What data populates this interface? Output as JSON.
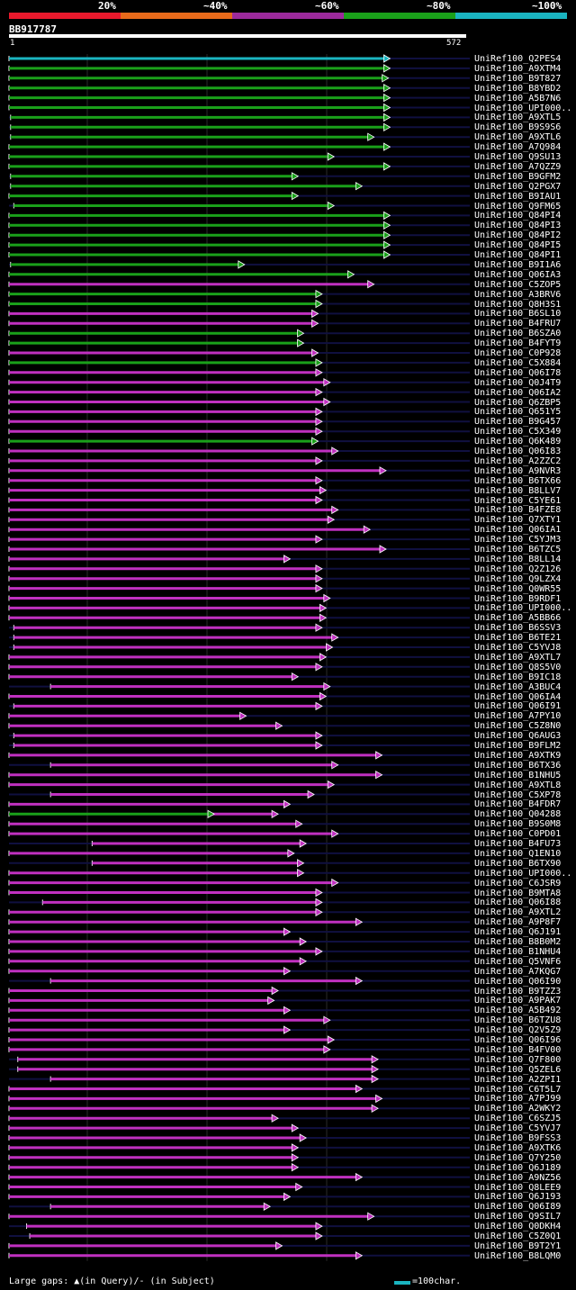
{
  "legend": [
    {
      "label": "20%",
      "color": "#e8192c"
    },
    {
      "label": "~40%",
      "color": "#e86a1a"
    },
    {
      "label": "~60%",
      "color": "#9c2a9c"
    },
    {
      "label": "~80%",
      "color": "#1aa01a"
    },
    {
      "label": "~100%",
      "color": "#1ab4c0"
    }
  ],
  "query": {
    "id": "BB917787",
    "start": "1",
    "end": "572",
    "length": 572
  },
  "colors": {
    "cyan": "#1ab4c0",
    "green": "#1aa01a",
    "magenta": "#c030c0",
    "dark": "#101040"
  },
  "footer": {
    "gap_text": "Large gaps: ▲(in Query)/- (in Subject)",
    "scale_text": "=100char."
  },
  "hits": [
    {
      "id": "UniRef100_Q2PES4",
      "start": 1,
      "end": 470,
      "color": "cyan"
    },
    {
      "id": "UniRef100_A9XTM4",
      "start": 1,
      "end": 470,
      "color": "green"
    },
    {
      "id": "UniRef100_B9T827",
      "start": 1,
      "end": 468,
      "color": "green"
    },
    {
      "id": "UniRef100_B8YBD2",
      "start": 1,
      "end": 470,
      "color": "green"
    },
    {
      "id": "UniRef100_A5B7N6",
      "start": 1,
      "end": 470,
      "color": "green"
    },
    {
      "id": "UniRef100_UPI000..",
      "start": 1,
      "end": 470,
      "color": "green"
    },
    {
      "id": "UniRef100_A9XTL5",
      "start": 3,
      "end": 470,
      "color": "green"
    },
    {
      "id": "UniRef100_B9S9S6",
      "start": 3,
      "end": 470,
      "color": "green"
    },
    {
      "id": "UniRef100_A9XTL6",
      "start": 3,
      "end": 450,
      "color": "green"
    },
    {
      "id": "UniRef100_A7Q984",
      "start": 1,
      "end": 470,
      "color": "green"
    },
    {
      "id": "UniRef100_Q9SU13",
      "start": 1,
      "end": 400,
      "color": "green"
    },
    {
      "id": "UniRef100_A7QZZ9",
      "start": 1,
      "end": 470,
      "color": "green"
    },
    {
      "id": "UniRef100_B9GFM2",
      "start": 3,
      "end": 355,
      "color": "green"
    },
    {
      "id": "UniRef100_Q2PGX7",
      "start": 3,
      "end": 435,
      "color": "green"
    },
    {
      "id": "UniRef100_B9IAU1",
      "start": 1,
      "end": 355,
      "color": "green"
    },
    {
      "id": "UniRef100_Q9FM65",
      "start": 7,
      "end": 400,
      "color": "green"
    },
    {
      "id": "UniRef100_Q84PI4",
      "start": 1,
      "end": 470,
      "color": "green"
    },
    {
      "id": "UniRef100_Q84PI3",
      "start": 1,
      "end": 470,
      "color": "green"
    },
    {
      "id": "UniRef100_Q84PI2",
      "start": 1,
      "end": 470,
      "color": "green"
    },
    {
      "id": "UniRef100_Q84PI5",
      "start": 1,
      "end": 470,
      "color": "green"
    },
    {
      "id": "UniRef100_Q84PI1",
      "start": 1,
      "end": 470,
      "color": "green"
    },
    {
      "id": "UniRef100_B9I1A6",
      "start": 3,
      "end": 288,
      "color": "green"
    },
    {
      "id": "UniRef100_Q06IA3",
      "start": 1,
      "end": 425,
      "color": "green"
    },
    {
      "id": "UniRef100_C5ZOP5",
      "start": 1,
      "end": 450,
      "color": "magenta"
    },
    {
      "id": "UniRef100_A3BRV6",
      "start": 1,
      "end": 385,
      "color": "green"
    },
    {
      "id": "UniRef100_Q8H3S1",
      "start": 1,
      "end": 385,
      "color": "green"
    },
    {
      "id": "UniRef100_B6SL10",
      "start": 1,
      "end": 380,
      "color": "magenta"
    },
    {
      "id": "UniRef100_B4FRU7",
      "start": 1,
      "end": 380,
      "color": "magenta"
    },
    {
      "id": "UniRef100_B6SZA0",
      "start": 1,
      "end": 362,
      "color": "green"
    },
    {
      "id": "UniRef100_B4FYT9",
      "start": 1,
      "end": 362,
      "color": "green"
    },
    {
      "id": "UniRef100_C0P928",
      "start": 1,
      "end": 380,
      "color": "magenta"
    },
    {
      "id": "UniRef100_C5X884",
      "start": 1,
      "end": 385,
      "color": "green"
    },
    {
      "id": "UniRef100_Q06I78",
      "start": 1,
      "end": 385,
      "color": "magenta"
    },
    {
      "id": "UniRef100_Q0J4T9",
      "start": 1,
      "end": 395,
      "color": "magenta"
    },
    {
      "id": "UniRef100_Q06IA2",
      "start": 1,
      "end": 385,
      "color": "magenta"
    },
    {
      "id": "UniRef100_Q6ZBP5",
      "start": 1,
      "end": 395,
      "color": "magenta"
    },
    {
      "id": "UniRef100_Q651Y5",
      "start": 1,
      "end": 385,
      "color": "magenta"
    },
    {
      "id": "UniRef100_B9G457",
      "start": 1,
      "end": 385,
      "color": "magenta"
    },
    {
      "id": "UniRef100_C5X349",
      "start": 1,
      "end": 385,
      "color": "magenta"
    },
    {
      "id": "UniRef100_Q6K489",
      "start": 1,
      "end": 380,
      "color": "green"
    },
    {
      "id": "UniRef100_Q06I83",
      "start": 1,
      "end": 405,
      "color": "magenta"
    },
    {
      "id": "UniRef100_A2ZZC2",
      "start": 1,
      "end": 385,
      "color": "magenta"
    },
    {
      "id": "UniRef100_A9NVR3",
      "start": 1,
      "end": 465,
      "color": "magenta"
    },
    {
      "id": "UniRef100_B6TX66",
      "start": 1,
      "end": 385,
      "color": "magenta"
    },
    {
      "id": "UniRef100_B8LLV7",
      "start": 1,
      "end": 390,
      "color": "magenta"
    },
    {
      "id": "UniRef100_C5YE61",
      "start": 1,
      "end": 385,
      "color": "magenta"
    },
    {
      "id": "UniRef100_B4FZE8",
      "start": 1,
      "end": 405,
      "color": "magenta"
    },
    {
      "id": "UniRef100_Q7XTY1",
      "start": 1,
      "end": 400,
      "color": "magenta"
    },
    {
      "id": "UniRef100_Q06IA1",
      "start": 1,
      "end": 445,
      "color": "magenta"
    },
    {
      "id": "UniRef100_C5YJM3",
      "start": 1,
      "end": 385,
      "color": "magenta"
    },
    {
      "id": "UniRef100_B6TZC5",
      "start": 1,
      "end": 465,
      "color": "magenta"
    },
    {
      "id": "UniRef100_B8LL14",
      "start": 1,
      "end": 345,
      "color": "magenta"
    },
    {
      "id": "UniRef100_Q2Z126",
      "start": 1,
      "end": 385,
      "color": "magenta"
    },
    {
      "id": "UniRef100_Q9LZX4",
      "start": 1,
      "end": 385,
      "color": "magenta"
    },
    {
      "id": "UniRef100_Q0WR55",
      "start": 1,
      "end": 385,
      "color": "magenta"
    },
    {
      "id": "UniRef100_B9RDF1",
      "start": 1,
      "end": 395,
      "color": "magenta"
    },
    {
      "id": "UniRef100_UPI000..",
      "start": 1,
      "end": 390,
      "color": "magenta"
    },
    {
      "id": "UniRef100_A5BB66",
      "start": 1,
      "end": 390,
      "color": "magenta"
    },
    {
      "id": "UniRef100_B6SSV3",
      "start": 7,
      "end": 385,
      "color": "magenta"
    },
    {
      "id": "UniRef100_B6TE21",
      "start": 7,
      "end": 405,
      "color": "magenta"
    },
    {
      "id": "UniRef100_C5YVJ8",
      "start": 7,
      "end": 398,
      "color": "magenta"
    },
    {
      "id": "UniRef100_A9XTL7",
      "start": 1,
      "end": 390,
      "color": "magenta"
    },
    {
      "id": "UniRef100_Q8S5V0",
      "start": 1,
      "end": 385,
      "color": "magenta"
    },
    {
      "id": "UniRef100_B9IC18",
      "start": 1,
      "end": 355,
      "color": "magenta"
    },
    {
      "id": "UniRef100_A3BUC4",
      "start": 53,
      "end": 395,
      "color": "magenta"
    },
    {
      "id": "UniRef100_Q06IA4",
      "start": 1,
      "end": 390,
      "color": "magenta"
    },
    {
      "id": "UniRef100_Q06I91",
      "start": 7,
      "end": 385,
      "color": "magenta"
    },
    {
      "id": "UniRef100_A7PY10",
      "start": 1,
      "end": 290,
      "color": "magenta"
    },
    {
      "id": "UniRef100_C5Z8N0",
      "start": 1,
      "end": 335,
      "color": "magenta"
    },
    {
      "id": "UniRef100_Q6AUG3",
      "start": 7,
      "end": 385,
      "color": "magenta"
    },
    {
      "id": "UniRef100_B9FLM2",
      "start": 7,
      "end": 385,
      "color": "magenta"
    },
    {
      "id": "UniRef100_A9XTK9",
      "start": 1,
      "end": 460,
      "color": "magenta"
    },
    {
      "id": "UniRef100_B6TX36",
      "start": 53,
      "end": 405,
      "color": "magenta"
    },
    {
      "id": "UniRef100_B1NHU5",
      "start": 1,
      "end": 460,
      "color": "magenta"
    },
    {
      "id": "UniRef100_A9XTL8",
      "start": 1,
      "end": 400,
      "color": "magenta"
    },
    {
      "id": "UniRef100_C5XP78",
      "start": 53,
      "end": 375,
      "color": "magenta"
    },
    {
      "id": "UniRef100_B4FDR7",
      "start": 1,
      "end": 345,
      "color": "magenta"
    },
    {
      "id": "UniRef100_Q04288",
      "start": 1,
      "end": 250,
      "color": "green",
      "end2": 330,
      "color2": "magenta"
    },
    {
      "id": "UniRef100_B9S0M8",
      "start": 1,
      "end": 360,
      "color": "magenta"
    },
    {
      "id": "UniRef100_C0PD01",
      "start": 1,
      "end": 405,
      "color": "magenta"
    },
    {
      "id": "UniRef100_B4FU73",
      "start": 105,
      "end": 365,
      "color": "magenta"
    },
    {
      "id": "UniRef100_Q1EN10",
      "start": 1,
      "end": 350,
      "color": "magenta"
    },
    {
      "id": "UniRef100_B6TX90",
      "start": 105,
      "end": 362,
      "color": "magenta"
    },
    {
      "id": "UniRef100_UPI000..",
      "start": 1,
      "end": 362,
      "color": "magenta"
    },
    {
      "id": "UniRef100_C6JSR9",
      "start": 1,
      "end": 405,
      "color": "magenta"
    },
    {
      "id": "UniRef100_B9MTA8",
      "start": 1,
      "end": 385,
      "color": "magenta"
    },
    {
      "id": "UniRef100_Q06I88",
      "start": 43,
      "end": 385,
      "color": "magenta"
    },
    {
      "id": "UniRef100_A9XTL2",
      "start": 1,
      "end": 385,
      "color": "magenta"
    },
    {
      "id": "UniRef100_A9P8F7",
      "start": 1,
      "end": 435,
      "color": "magenta"
    },
    {
      "id": "UniRef100_Q6J191",
      "start": 1,
      "end": 345,
      "color": "magenta"
    },
    {
      "id": "UniRef100_B8B0M2",
      "start": 1,
      "end": 365,
      "color": "magenta"
    },
    {
      "id": "UniRef100_B1NHU4",
      "start": 1,
      "end": 385,
      "color": "magenta"
    },
    {
      "id": "UniRef100_Q5VNF6",
      "start": 1,
      "end": 365,
      "color": "magenta"
    },
    {
      "id": "UniRef100_A7KQG7",
      "start": 1,
      "end": 345,
      "color": "magenta"
    },
    {
      "id": "UniRef100_Q06I90",
      "start": 53,
      "end": 435,
      "color": "magenta"
    },
    {
      "id": "UniRef100_B9TZZ3",
      "start": 1,
      "end": 330,
      "color": "magenta"
    },
    {
      "id": "UniRef100_A9PAK7",
      "start": 1,
      "end": 325,
      "color": "magenta"
    },
    {
      "id": "UniRef100_A5B492",
      "start": 1,
      "end": 345,
      "color": "magenta"
    },
    {
      "id": "UniRef100_B6TZU8",
      "start": 1,
      "end": 395,
      "color": "magenta"
    },
    {
      "id": "UniRef100_Q2V5Z9",
      "start": 1,
      "end": 345,
      "color": "magenta"
    },
    {
      "id": "UniRef100_Q06I96",
      "start": 1,
      "end": 400,
      "color": "magenta"
    },
    {
      "id": "UniRef100_B4FV00",
      "start": 1,
      "end": 395,
      "color": "magenta"
    },
    {
      "id": "UniRef100_Q7F800",
      "start": 12,
      "end": 455,
      "color": "magenta"
    },
    {
      "id": "UniRef100_Q5ZEL6",
      "start": 12,
      "end": 455,
      "color": "magenta"
    },
    {
      "id": "UniRef100_A2ZPI1",
      "start": 53,
      "end": 455,
      "color": "magenta"
    },
    {
      "id": "UniRef100_C6T5L7",
      "start": 1,
      "end": 435,
      "color": "magenta"
    },
    {
      "id": "UniRef100_A7PJ99",
      "start": 1,
      "end": 460,
      "color": "magenta"
    },
    {
      "id": "UniRef100_A2WKY2",
      "start": 1,
      "end": 455,
      "color": "magenta"
    },
    {
      "id": "UniRef100_C6SZJ5",
      "start": 1,
      "end": 330,
      "color": "magenta"
    },
    {
      "id": "UniRef100_C5YVJ7",
      "start": 1,
      "end": 355,
      "color": "magenta"
    },
    {
      "id": "UniRef100_B9FSS3",
      "start": 1,
      "end": 365,
      "color": "magenta"
    },
    {
      "id": "UniRef100_A9XTK6",
      "start": 1,
      "end": 355,
      "color": "magenta"
    },
    {
      "id": "UniRef100_Q7Y250",
      "start": 1,
      "end": 355,
      "color": "magenta"
    },
    {
      "id": "UniRef100_Q6J189",
      "start": 1,
      "end": 355,
      "color": "magenta"
    },
    {
      "id": "UniRef100_A9NZ56",
      "start": 1,
      "end": 435,
      "color": "magenta"
    },
    {
      "id": "UniRef100_Q8LEE9",
      "start": 1,
      "end": 360,
      "color": "magenta"
    },
    {
      "id": "UniRef100_Q6J193",
      "start": 1,
      "end": 345,
      "color": "magenta"
    },
    {
      "id": "UniRef100_Q06I89",
      "start": 53,
      "end": 320,
      "color": "magenta"
    },
    {
      "id": "UniRef100_Q9SIL7",
      "start": 1,
      "end": 450,
      "color": "magenta"
    },
    {
      "id": "UniRef100_Q0DKH4",
      "start": 23,
      "end": 385,
      "color": "magenta"
    },
    {
      "id": "UniRef100_C5Z0Q1",
      "start": 27,
      "end": 385,
      "color": "magenta"
    },
    {
      "id": "UniRef100_B9T2Y1",
      "start": 1,
      "end": 335,
      "color": "magenta"
    },
    {
      "id": "UniRef100_B8LQM0",
      "start": 1,
      "end": 435,
      "color": "magenta"
    }
  ]
}
